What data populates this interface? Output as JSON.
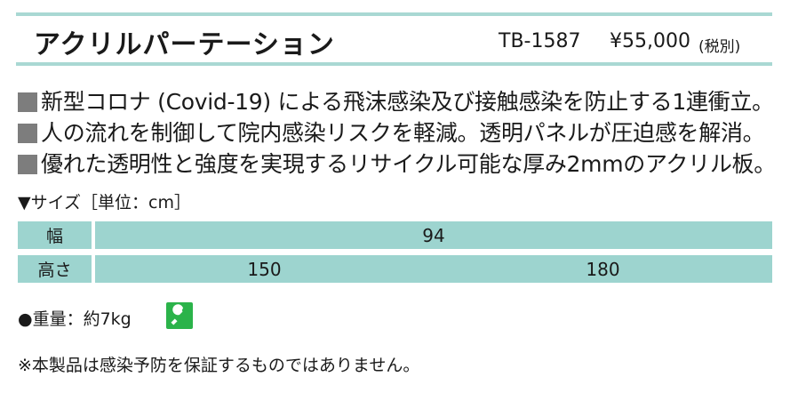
{
  "header": {
    "title": "アクリルパーテーション",
    "model": "TB-1587",
    "price": "¥55,000",
    "tax_note": "(税別)"
  },
  "features": [
    "新型コロナ (Covid-19) による飛沫感染及び接触感染を防止する1連衝立。",
    "人の流れを制御して院内感染リスクを軽減。透明パネルが圧迫感を解消。",
    "優れた透明性と強度を実現するリサイクル可能な厚み2mmのアクリル板。"
  ],
  "size_table": {
    "label": "▼サイズ［単位：cm］",
    "rows": [
      {
        "header": "幅",
        "values": [
          "94"
        ]
      },
      {
        "header": "高さ",
        "values": [
          "150",
          "180"
        ]
      }
    ]
  },
  "weight": "●重量：約7kg",
  "note": "※本製品は感染予防を保証するものではありません。",
  "icons": {
    "badge": "wrench-icon",
    "badge_color": "#2bb34a"
  },
  "colors": {
    "accent": "#a9d8d3",
    "table_fill": "#9dd4cf",
    "bullet": "#7d7d7d"
  }
}
